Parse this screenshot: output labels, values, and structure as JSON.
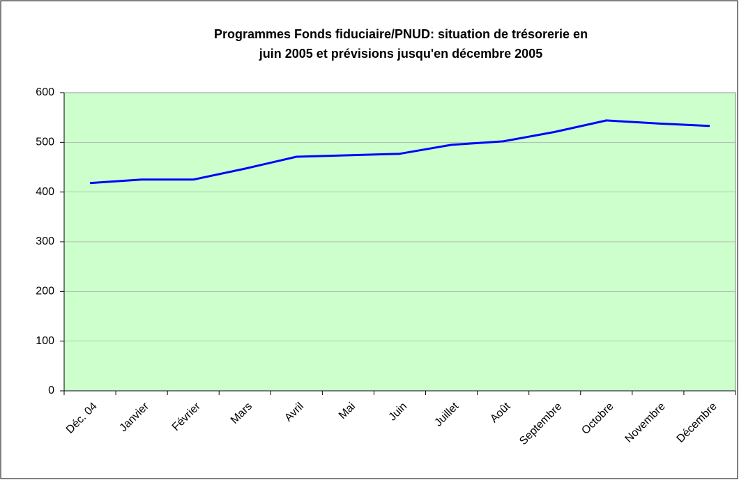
{
  "chart_data": {
    "type": "line",
    "title": [
      "Programmes Fonds fiduciaire/PNUD: situation de trésorerie en",
      "juin 2005 et prévisions jusqu'en décembre 2005"
    ],
    "categories": [
      "Déc. 04",
      "Janvier",
      "Février",
      "Mars",
      "Avril",
      "Mai",
      "Juin",
      "Juillet",
      "Août",
      "Septembre",
      "Octobre",
      "Novembre",
      "Décembre"
    ],
    "values": [
      418,
      425,
      425,
      447,
      471,
      474,
      477,
      495,
      502,
      521,
      544,
      538,
      533
    ],
    "color": "#0000ff",
    "ylim": [
      0,
      600
    ],
    "yticks": [
      0,
      100,
      200,
      300,
      400,
      500,
      600
    ],
    "grid": true,
    "plot_background": "#ccffcc"
  }
}
